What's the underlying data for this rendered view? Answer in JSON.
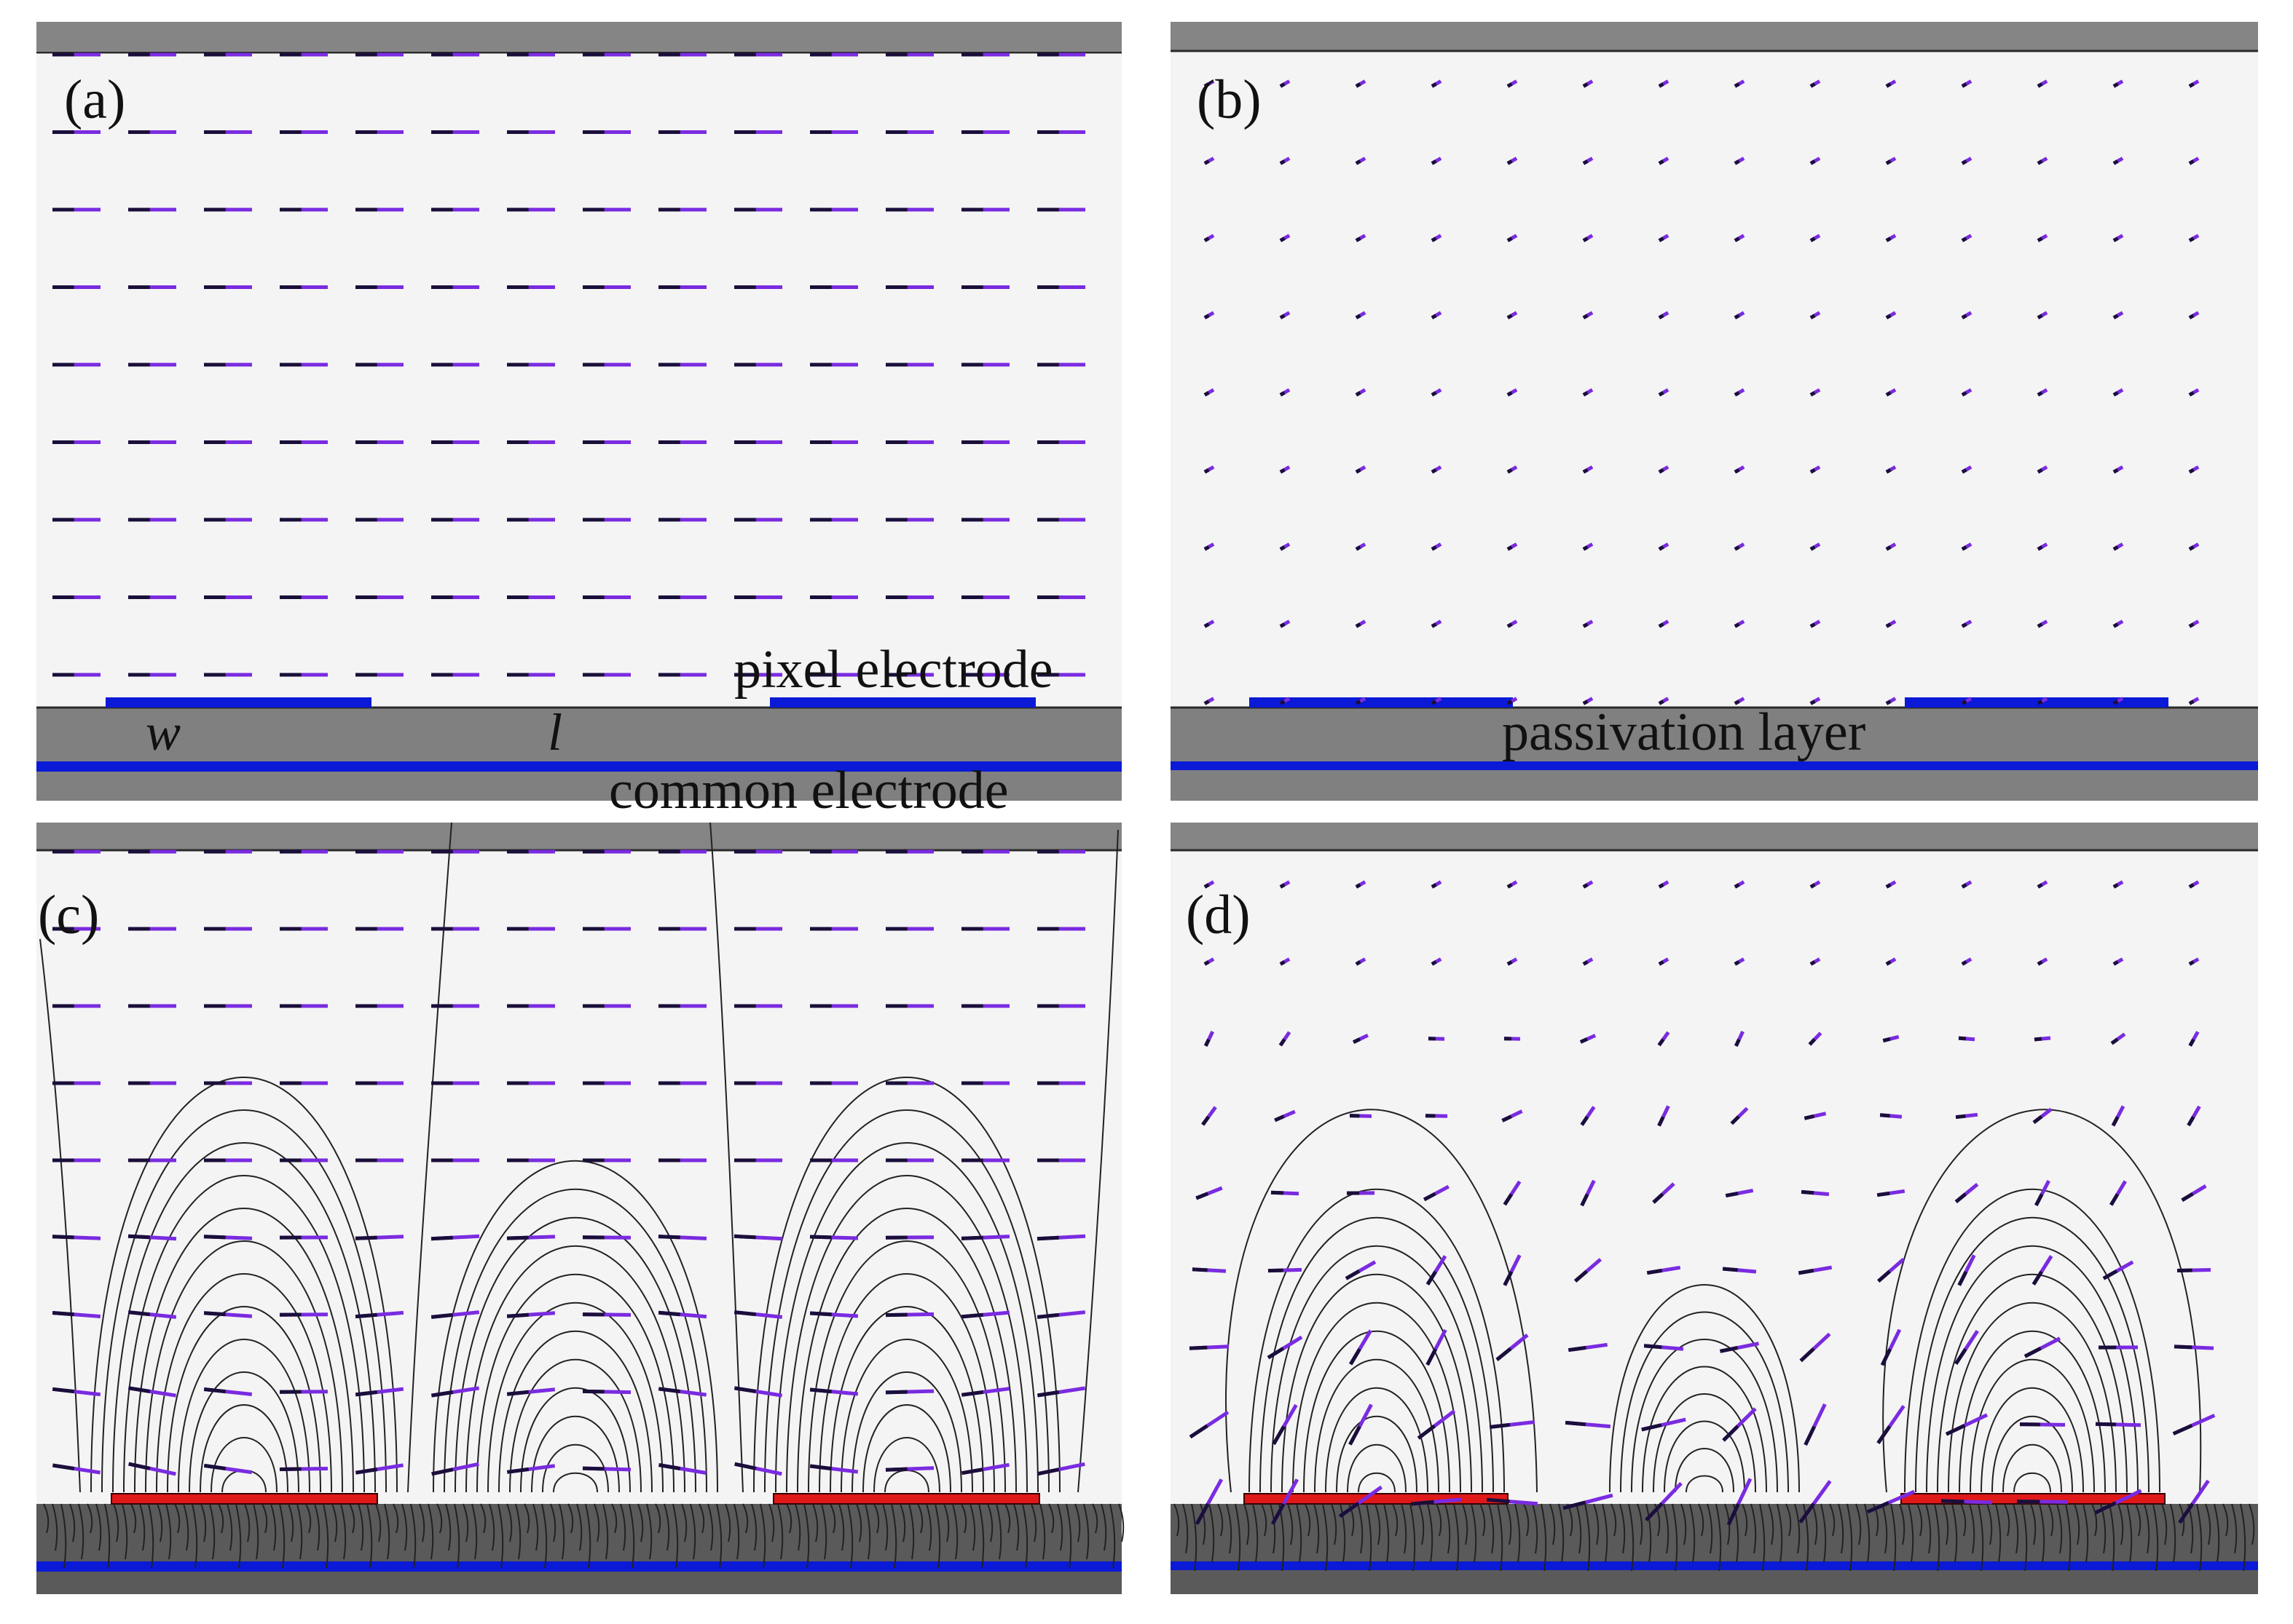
{
  "panels": [
    {
      "id": "a",
      "label": "(a)",
      "state": "off",
      "electrode_color": "#0a1ad6"
    },
    {
      "id": "b",
      "label": "(b)",
      "state": "off-top-view",
      "electrode_color": "#0a1ad6"
    },
    {
      "id": "c",
      "label": "(c)",
      "state": "on",
      "electrode_color": "#e01818"
    },
    {
      "id": "d",
      "label": "(d)",
      "state": "on-top-view",
      "electrode_color": "#e01818"
    }
  ],
  "annotations": {
    "pixel_electrode": "pixel electrode",
    "common_electrode": "common electrode",
    "passivation_layer": "passivation layer",
    "w": "w",
    "l": "l"
  },
  "colors": {
    "lc_director": "#7a2be0",
    "glass": "#858585",
    "background": "#f4f4f4",
    "blue_electrode": "#0a1ad6",
    "red_electrode": "#e01818"
  },
  "icons": [
    "lc-director-mark",
    "field-line"
  ]
}
